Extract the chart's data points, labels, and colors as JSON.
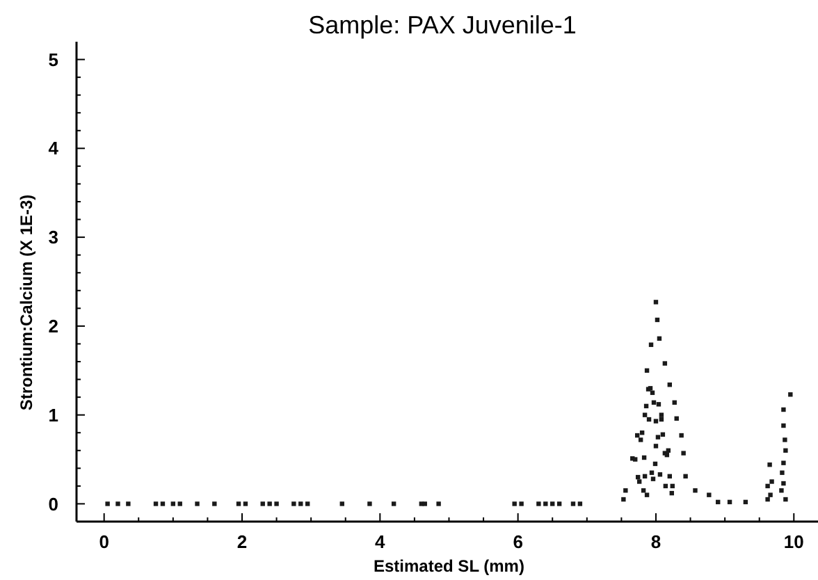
{
  "chart_data": {
    "type": "scatter",
    "title": "Sample: PAX Juvenile-1",
    "xlabel": "Estimated SL (mm)",
    "ylabel": "Strontium:Calcium (X 1E-3)",
    "xlim": [
      -0.4,
      10.35
    ],
    "ylim": [
      -0.2,
      5.2
    ],
    "xticks": [
      0,
      {
        "value": 0.5,
        "label": null
      },
      {
        "value": 1,
        "label": null
      },
      {
        "value": 1.5,
        "label": null
      },
      2,
      {
        "value": 2.5,
        "label": null
      },
      {
        "value": 3,
        "label": null
      },
      {
        "value": 3.5,
        "label": null
      },
      4,
      {
        "value": 4.5,
        "label": null
      },
      {
        "value": 5,
        "label": null
      },
      {
        "value": 5.5,
        "label": null
      },
      6,
      {
        "value": 6.5,
        "label": null
      },
      {
        "value": 7,
        "label": null
      },
      {
        "value": 7.5,
        "label": null
      },
      8,
      {
        "value": 8.5,
        "label": null
      },
      {
        "value": 9,
        "label": null
      },
      {
        "value": 9.5,
        "label": null
      },
      10
    ],
    "yticks": [
      0,
      {
        "value": 0.2,
        "label": null
      },
      {
        "value": 0.4,
        "label": null
      },
      {
        "value": 0.6,
        "label": null
      },
      {
        "value": 0.8,
        "label": null
      },
      1,
      {
        "value": 1.2,
        "label": null
      },
      {
        "value": 1.4,
        "label": null
      },
      {
        "value": 1.6,
        "label": null
      },
      {
        "value": 1.8,
        "label": null
      },
      2,
      {
        "value": 2.2,
        "label": null
      },
      {
        "value": 2.4,
        "label": null
      },
      {
        "value": 2.6,
        "label": null
      },
      {
        "value": 2.8,
        "label": null
      },
      3,
      {
        "value": 3.2,
        "label": null
      },
      {
        "value": 3.4,
        "label": null
      },
      {
        "value": 3.6,
        "label": null
      },
      {
        "value": 3.8,
        "label": null
      },
      4,
      {
        "value": 4.2,
        "label": null
      },
      {
        "value": 4.4,
        "label": null
      },
      {
        "value": 4.6,
        "label": null
      },
      {
        "value": 4.8,
        "label": null
      },
      5
    ],
    "marker": "square",
    "series": [
      {
        "color": "#1a1a1a",
        "x": [
          0.05,
          0.2,
          0.35,
          0.75,
          0.85,
          1.0,
          1.1,
          1.35,
          1.6,
          1.95,
          2.05,
          2.3,
          2.4,
          2.5,
          2.75,
          2.85,
          2.95,
          3.45,
          3.85,
          4.2,
          4.6,
          4.65,
          4.85,
          5.95,
          6.05,
          6.3,
          6.4,
          6.5,
          6.6,
          6.8,
          6.9,
          8.0,
          8.02,
          8.05,
          7.93,
          8.13,
          7.87,
          8.2,
          7.89,
          7.97,
          8.27,
          7.84,
          8.0,
          8.3,
          7.73,
          8.03,
          8.37,
          7.66,
          8.13,
          8.4,
          7.84,
          8.2,
          8.43,
          7.56,
          7.87,
          8.23,
          8.57,
          8.77,
          8.9,
          9.07,
          9.3,
          7.53,
          7.92,
          7.95,
          8.04,
          8.08,
          7.8,
          7.78,
          7.83,
          8.1,
          8.16,
          8.06,
          7.96,
          7.7,
          7.76,
          8.18,
          8.24,
          7.9,
          7.94,
          7.82,
          7.99,
          8.14,
          8.08,
          7.86,
          7.74,
          8.0,
          9.95,
          9.85,
          9.85,
          9.87,
          9.65,
          9.85,
          9.62,
          9.85,
          9.62,
          9.88,
          9.88,
          9.83,
          9.68,
          9.82,
          9.66
        ],
        "values": [
          0,
          0,
          0,
          0,
          0,
          0,
          0,
          0,
          0,
          0,
          0,
          0,
          0,
          0,
          0,
          0,
          0,
          0,
          0,
          0,
          0,
          0,
          0,
          0,
          0,
          0,
          0,
          0,
          0,
          0,
          0,
          2.27,
          2.07,
          1.86,
          1.79,
          1.58,
          1.5,
          1.34,
          1.29,
          1.14,
          1.14,
          1.0,
          0.93,
          0.96,
          0.77,
          0.75,
          0.77,
          0.51,
          0.57,
          0.57,
          0.31,
          0.31,
          0.31,
          0.15,
          0.1,
          0.12,
          0.15,
          0.1,
          0.02,
          0.02,
          0.02,
          0.05,
          1.3,
          1.25,
          1.12,
          0.95,
          0.8,
          0.72,
          0.52,
          0.78,
          0.55,
          0.33,
          0.28,
          0.5,
          0.25,
          0.6,
          0.2,
          0.95,
          0.35,
          0.15,
          0.45,
          0.2,
          1.0,
          1.1,
          0.3,
          0.65,
          1.23,
          1.06,
          0.88,
          0.72,
          0.44,
          0.46,
          0.2,
          0.23,
          0.05,
          0.05,
          0.6,
          0.35,
          0.25,
          0.15,
          0.1
        ]
      }
    ]
  }
}
